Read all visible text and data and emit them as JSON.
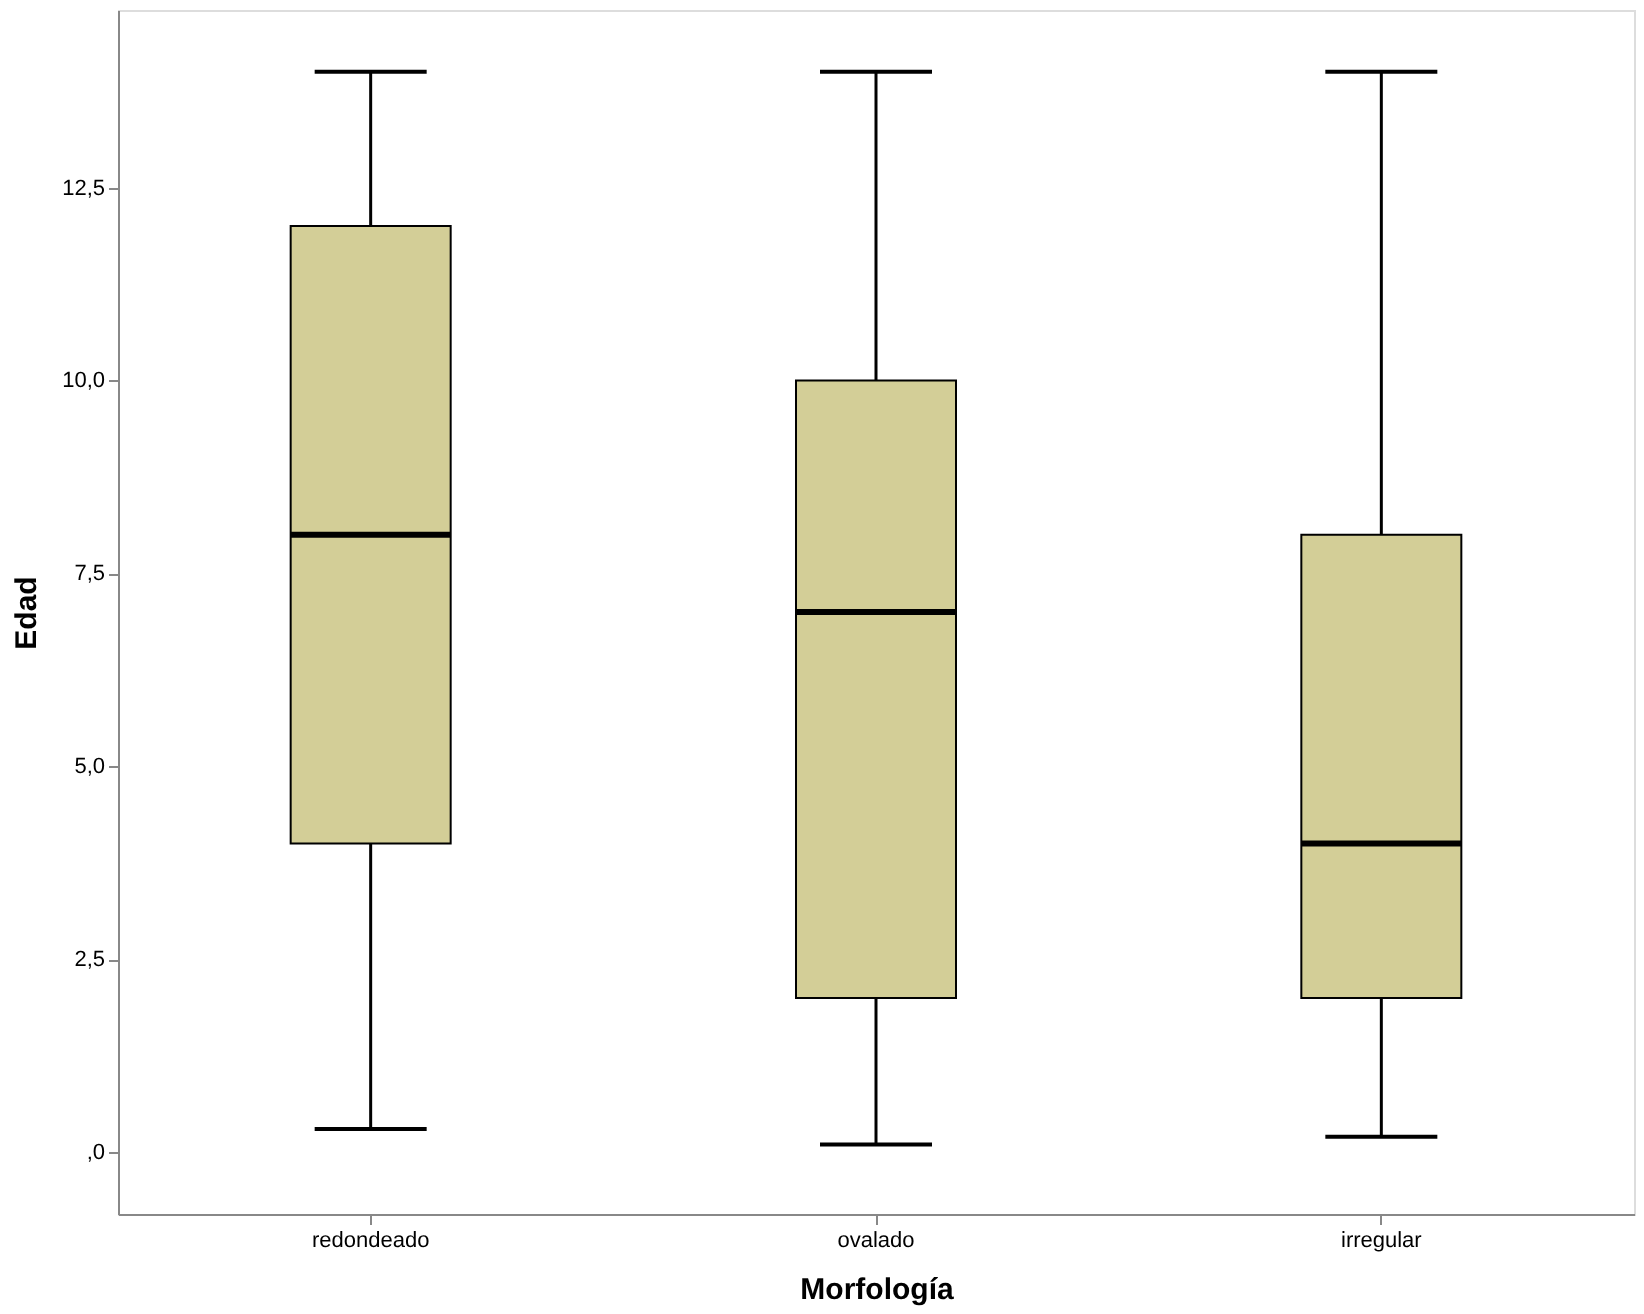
{
  "chart_data": {
    "type": "box",
    "xlabel": "Morfología",
    "ylabel": "Edad",
    "categories": [
      "redondeado",
      "ovalado",
      "irregular"
    ],
    "boxes": [
      {
        "low": 0.3,
        "q1": 4,
        "median": 8,
        "q3": 12,
        "high": 14
      },
      {
        "low": 0.1,
        "q1": 2,
        "median": 7,
        "q3": 10,
        "high": 14
      },
      {
        "low": 0.2,
        "q1": 2,
        "median": 4,
        "q3": 8,
        "high": 14
      }
    ],
    "color": "#d3ce97",
    "ylim": [
      -0.8,
      14.8
    ],
    "yticks": [
      {
        "value": 0,
        "label": ",0"
      },
      {
        "value": 2.5,
        "label": "2,5"
      },
      {
        "value": 5,
        "label": "5,0"
      },
      {
        "value": 7.5,
        "label": "7,5"
      },
      {
        "value": 10,
        "label": "10,0"
      },
      {
        "value": 12.5,
        "label": "12,5"
      }
    ],
    "grid": false
  }
}
